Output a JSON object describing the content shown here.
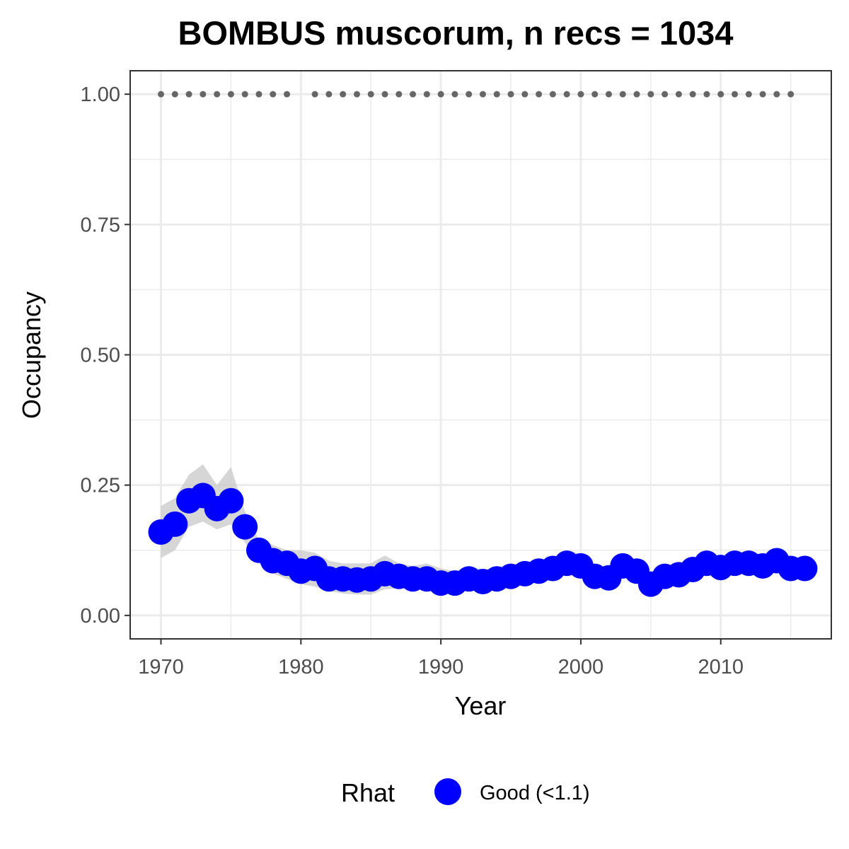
{
  "chart_data": {
    "type": "line",
    "title": "BOMBUS muscorum, n recs = 1034",
    "xlabel": "Year",
    "ylabel": "Occupancy",
    "xlim": [
      1967.8,
      2017.9
    ],
    "ylim": [
      -0.045,
      1.045
    ],
    "x_ticks": [
      1970,
      1980,
      1990,
      2000,
      2010
    ],
    "x_tick_labels": [
      "1970",
      "1980",
      "1990",
      "2000",
      "2010"
    ],
    "y_ticks": [
      0,
      0.25,
      0.5,
      0.75,
      1.0
    ],
    "y_tick_labels": [
      "0.00",
      "0.25",
      "0.50",
      "0.75",
      "1.00"
    ],
    "grid": true,
    "legend": {
      "title": "Rhat",
      "position": "bottom",
      "entries": [
        {
          "label": "Good (<1.1)",
          "color": "#0000ff"
        }
      ]
    },
    "colors": {
      "point": "#0000ff",
      "ribbon": "#c8c8c8",
      "record_dots": "#666666",
      "grid": "#ebebeb",
      "panel_border": "#333333"
    },
    "series": [
      {
        "x": [
          1970,
          1971,
          1972,
          1973,
          1974,
          1975,
          1976,
          1977,
          1978,
          1979,
          1980,
          1981,
          1982,
          1983,
          1984,
          1985,
          1986,
          1987,
          1988,
          1989,
          1990,
          1991,
          1992,
          1993,
          1994,
          1995,
          1996,
          1997,
          1998,
          1999,
          2000,
          2001,
          2002,
          2003,
          2004,
          2005,
          2006,
          2007,
          2008,
          2009,
          2010,
          2011,
          2012,
          2013,
          2014,
          2015,
          2016
        ],
        "values": [
          0.16,
          0.175,
          0.22,
          0.23,
          0.205,
          0.22,
          0.17,
          0.125,
          0.105,
          0.1,
          0.085,
          0.09,
          0.07,
          0.07,
          0.068,
          0.07,
          0.08,
          0.075,
          0.07,
          0.07,
          0.062,
          0.062,
          0.07,
          0.065,
          0.07,
          0.075,
          0.08,
          0.085,
          0.09,
          0.1,
          0.095,
          0.075,
          0.072,
          0.095,
          0.085,
          0.06,
          0.075,
          0.078,
          0.088,
          0.1,
          0.092,
          0.1,
          0.1,
          0.095,
          0.105,
          0.09,
          0.09
        ],
        "lower": [
          0.11,
          0.125,
          0.17,
          0.18,
          0.165,
          0.175,
          0.14,
          0.1,
          0.08,
          0.07,
          0.06,
          0.055,
          0.047,
          0.042,
          0.04,
          0.04,
          0.05,
          0.052,
          0.05,
          0.048,
          0.042,
          0.045,
          0.05,
          0.048,
          0.052,
          0.058,
          0.062,
          0.068,
          0.072,
          0.08,
          0.078,
          0.06,
          0.058,
          0.078,
          0.068,
          0.048,
          0.058,
          0.062,
          0.07,
          0.082,
          0.078,
          0.083,
          0.085,
          0.08,
          0.085,
          0.075,
          0.07
        ],
        "upper": [
          0.21,
          0.225,
          0.27,
          0.29,
          0.25,
          0.285,
          0.2,
          0.145,
          0.135,
          0.125,
          0.125,
          0.12,
          0.105,
          0.1,
          0.1,
          0.1,
          0.115,
          0.1,
          0.095,
          0.1,
          0.09,
          0.085,
          0.095,
          0.088,
          0.092,
          0.098,
          0.1,
          0.105,
          0.11,
          0.125,
          0.118,
          0.095,
          0.09,
          0.118,
          0.105,
          0.08,
          0.095,
          0.098,
          0.108,
          0.12,
          0.112,
          0.118,
          0.125,
          0.115,
          0.125,
          0.11,
          0.11
        ]
      }
    ],
    "record_years": [
      1970,
      1971,
      1972,
      1973,
      1974,
      1975,
      1976,
      1977,
      1978,
      1979,
      1981,
      1982,
      1983,
      1984,
      1985,
      1986,
      1987,
      1988,
      1989,
      1990,
      1991,
      1992,
      1993,
      1994,
      1995,
      1996,
      1997,
      1998,
      1999,
      2000,
      2001,
      2002,
      2003,
      2004,
      2005,
      2006,
      2007,
      2008,
      2009,
      2010,
      2011,
      2012,
      2013,
      2014,
      2015
    ],
    "record_value": 1.0
  }
}
